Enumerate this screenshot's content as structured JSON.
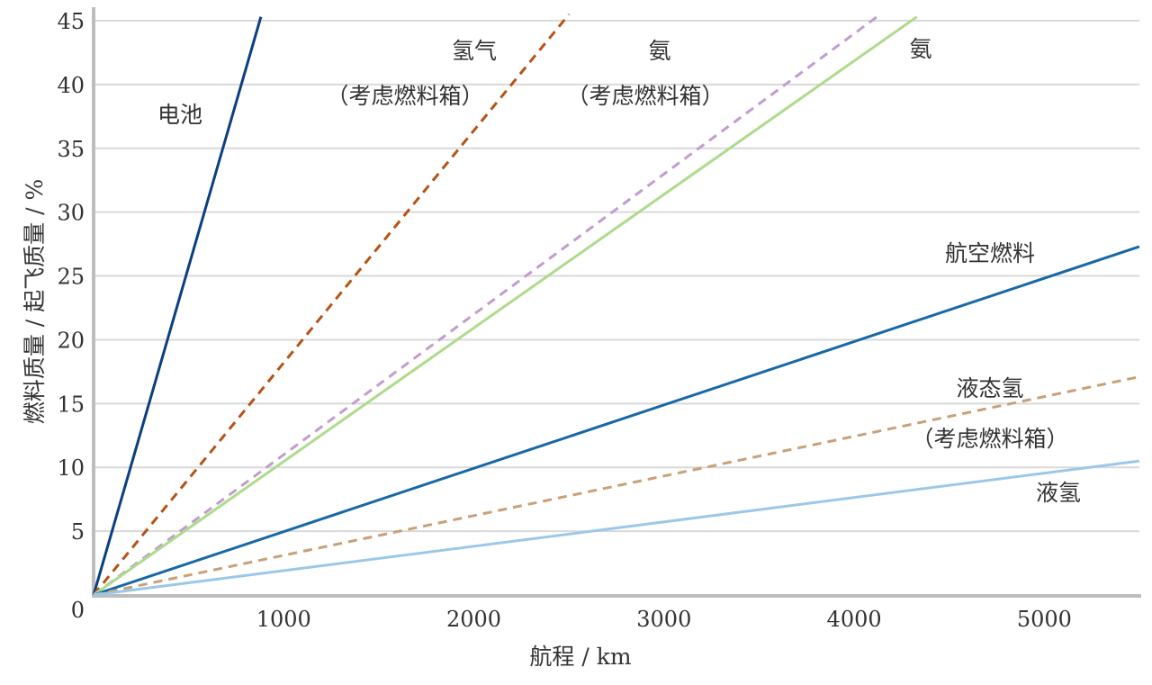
{
  "chart_data": {
    "type": "line",
    "xlabel": "航程 / km",
    "ylabel": "燃料质量 / 起飞质量 / %",
    "xlim": [
      0,
      5500
    ],
    "ylim": [
      0,
      45
    ],
    "grid": true,
    "x_ticks": [
      "0",
      "1000",
      "2000",
      "3000",
      "4000",
      "5000"
    ],
    "y_ticks": [
      "0",
      "5",
      "10",
      "15",
      "20",
      "25",
      "30",
      "35",
      "40",
      "45"
    ],
    "series": [
      {
        "name": "电池",
        "color": "#0b3f80",
        "dashed": false,
        "x": [
          0,
          880
        ],
        "y": [
          0,
          45.3
        ]
      },
      {
        "name": "氢气",
        "note": "（考虑燃料箱）",
        "color": "#b65314",
        "dashed": true,
        "x": [
          0,
          2500
        ],
        "y": [
          0,
          45.5
        ]
      },
      {
        "name": "氨",
        "note": "（考虑燃料箱）",
        "color": "#c39ccf",
        "dashed": true,
        "x": [
          0,
          4120
        ],
        "y": [
          0,
          45.3
        ]
      },
      {
        "name": "氨",
        "color": "#addb8b",
        "dashed": false,
        "x": [
          0,
          4330
        ],
        "y": [
          0,
          45.3
        ]
      },
      {
        "name": "航空燃料",
        "color": "#1669a7",
        "dashed": false,
        "x": [
          0,
          5500
        ],
        "y": [
          0,
          27.3
        ]
      },
      {
        "name": "液态氢",
        "note": "（考虑燃料箱）",
        "color": "#c9a078",
        "dashed": true,
        "x": [
          0,
          5500
        ],
        "y": [
          0,
          17.1
        ]
      },
      {
        "name": "液氢",
        "color": "#9cc8e8",
        "dashed": false,
        "x": [
          0,
          5500
        ],
        "y": [
          0,
          10.5
        ]
      }
    ]
  }
}
